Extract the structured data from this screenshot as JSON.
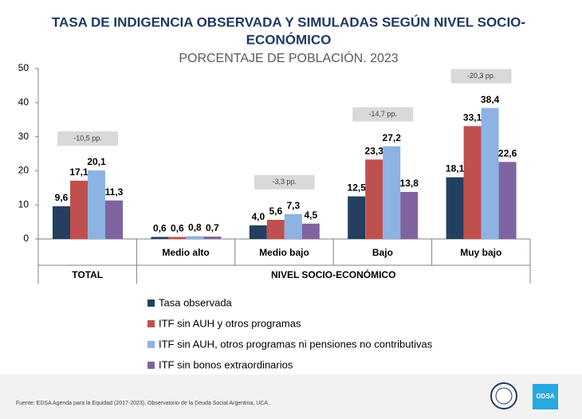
{
  "chart_data": {
    "type": "bar",
    "title_lines": [
      "TASA DE INDIGENCIA OBSERVADA Y SIMULADAS SEGÚN NIVEL SOCIO-",
      "ECONÓMICO"
    ],
    "subtitle": "PORCENTAJE DE POBLACIÓN. 2023",
    "categories": [
      "TOTAL",
      "Medio alto",
      "Medio bajo",
      "Bajo",
      "Muy bajo"
    ],
    "group_label": "NIVEL SOCIO-ECONÓMICO",
    "annotations": [
      "-10,5 pp.",
      null,
      "-3,3 pp.",
      "-14,7 pp.",
      "-20,3 pp."
    ],
    "series": [
      {
        "name": "Tasa observada",
        "color": "#243f60",
        "values": [
          9.6,
          0.6,
          4.0,
          12.5,
          18.1
        ],
        "value_labels": [
          "9,6",
          "0,6",
          "4,0",
          "12,5",
          "18,1"
        ]
      },
      {
        "name": "ITF sin AUH y otros programas",
        "color": "#c0504d",
        "values": [
          17.1,
          0.6,
          5.6,
          23.3,
          33.1
        ],
        "value_labels": [
          "17,1",
          "0,6",
          "5,6",
          "23,3",
          "33,1"
        ]
      },
      {
        "name": "ITF sin AUH, otros programas ni pensiones no contributivas",
        "color": "#8db3e2",
        "values": [
          20.1,
          0.8,
          7.3,
          27.2,
          38.4
        ],
        "value_labels": [
          "20,1",
          "0,8",
          "7,3",
          "27,2",
          "38,4"
        ]
      },
      {
        "name": "ITF sin bonos extraordinarios",
        "color": "#8064a2",
        "values": [
          11.3,
          0.7,
          4.5,
          13.8,
          22.6
        ],
        "value_labels": [
          "11,3",
          "0,7",
          "4,5",
          "13,8",
          "22,6"
        ]
      }
    ],
    "ylim": [
      0,
      50
    ],
    "yticks": [
      0,
      10,
      20,
      30,
      40,
      50
    ],
    "grid": false
  },
  "footer": {
    "source": "Fuente: EDSA Agenda para la Equidad (2017-2023), Observatorio de la Deuda Social Argentina, UCA.",
    "logo": "ODSA"
  }
}
